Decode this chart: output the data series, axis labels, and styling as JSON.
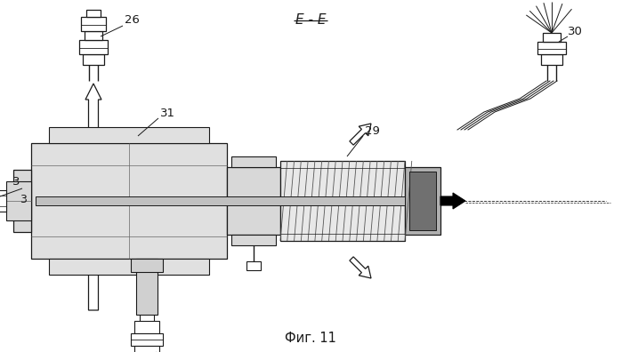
{
  "title": "E - E",
  "fig_label": "Фиг. 11",
  "bg_color": "#ffffff",
  "line_color": "#1a1a1a",
  "figsize": [
    6.99,
    3.96
  ],
  "dpi": 100
}
